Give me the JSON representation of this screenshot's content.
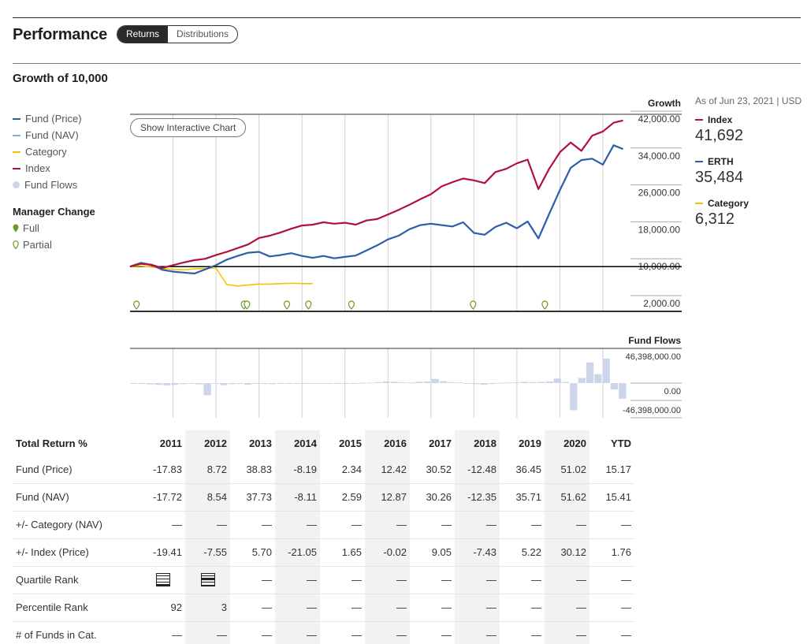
{
  "header": {
    "title": "Performance",
    "tabs": [
      {
        "label": "Returns",
        "active": true
      },
      {
        "label": "Distributions",
        "active": false
      }
    ]
  },
  "growth": {
    "title": "Growth of 10,000",
    "show_interactive_label": "Show Interactive Chart",
    "legend": [
      {
        "label": "Fund (Price)",
        "color": "#2e5ea8",
        "kind": "line"
      },
      {
        "label": "Fund (NAV)",
        "color": "#8fa9d6",
        "kind": "line"
      },
      {
        "label": "Category",
        "color": "#f2c300",
        "kind": "line"
      },
      {
        "label": "Index",
        "color": "#b0113d",
        "kind": "line"
      },
      {
        "label": "Fund Flows",
        "color": "#cdd6e8",
        "kind": "dot"
      }
    ],
    "manager_change": {
      "title": "Manager Change",
      "full_label": "Full",
      "partial_label": "Partial",
      "color": "#6e9a26"
    },
    "as_of": "As of Jun 23, 2021 | USD",
    "summary": [
      {
        "label": "Index",
        "value": "41,692",
        "color": "#b0113d"
      },
      {
        "label": "ERTH",
        "value": "35,484",
        "color": "#2e5ea8"
      },
      {
        "label": "Category",
        "value": "6,312",
        "color": "#f2c300"
      }
    ]
  },
  "chart_data": [
    {
      "type": "line",
      "title": "Growth",
      "ytick_labels": [
        "42,000.00",
        "34,000.00",
        "26,000.00",
        "18,000.00",
        "10,000.00",
        "2,000.00"
      ],
      "ylim": [
        2000,
        42000
      ],
      "x": [
        2010.0,
        2010.25,
        2010.5,
        2010.75,
        2011.0,
        2011.25,
        2011.5,
        2011.75,
        2012.0,
        2012.25,
        2012.5,
        2012.75,
        2013.0,
        2013.25,
        2013.5,
        2013.75,
        2014.0,
        2014.25,
        2014.5,
        2014.75,
        2015.0,
        2015.25,
        2015.5,
        2015.75,
        2016.0,
        2016.25,
        2016.5,
        2016.75,
        2017.0,
        2017.25,
        2017.5,
        2017.75,
        2018.0,
        2018.25,
        2018.5,
        2018.75,
        2019.0,
        2019.25,
        2019.5,
        2019.75,
        2020.0,
        2020.25,
        2020.5,
        2020.75,
        2021.0,
        2021.25,
        2021.47
      ],
      "series": [
        {
          "name": "Index",
          "color": "#b0113d",
          "values": [
            10000,
            10600,
            10400,
            9700,
            10300,
            10900,
            11400,
            11700,
            12500,
            13200,
            14000,
            14800,
            16200,
            16700,
            17400,
            18200,
            18900,
            19100,
            19600,
            19300,
            19500,
            19100,
            20000,
            20300,
            21300,
            22300,
            23400,
            24600,
            25700,
            27400,
            28300,
            29100,
            28700,
            28100,
            30500,
            31200,
            32400,
            33200,
            26800,
            31200,
            34800,
            36900,
            35100,
            38400,
            39300,
            41200,
            41692
          ]
        },
        {
          "name": "Fund (Price)",
          "color": "#2e5ea8",
          "values": [
            10000,
            10800,
            10400,
            9300,
            8900,
            8700,
            8500,
            9400,
            10300,
            11500,
            12300,
            13000,
            13200,
            12200,
            12500,
            12900,
            12300,
            11900,
            12300,
            11800,
            12100,
            12400,
            13500,
            14600,
            15900,
            16700,
            18100,
            19000,
            19300,
            19000,
            18700,
            19600,
            17300,
            16900,
            18600,
            19500,
            18300,
            19800,
            16100,
            21400,
            26600,
            31400,
            33100,
            33400,
            32100,
            36300,
            35484
          ]
        },
        {
          "name": "Category",
          "color": "#f2c300",
          "values": [
            10000,
            10100,
            9900,
            9600,
            9400,
            9300,
            9500,
            9600,
            9700,
            6100,
            5800,
            6000,
            6200,
            6200,
            6300,
            6400,
            6300,
            6312,
            null,
            null,
            null,
            null,
            null,
            null,
            null,
            null,
            null,
            null,
            null,
            null,
            null,
            null,
            null,
            null,
            null,
            null,
            null,
            null,
            null,
            null,
            null,
            null,
            null,
            null,
            null,
            null,
            null
          ]
        }
      ]
    },
    {
      "type": "bar",
      "title": "Fund Flows",
      "ytick_labels": [
        "46,398,000.00",
        "0.00",
        "-46,398,000.00"
      ],
      "ylim": [
        -46398000,
        46398000
      ],
      "values": [
        -400000,
        -1200000,
        -1800000,
        -2500000,
        -3200000,
        -2500000,
        -1500000,
        -900000,
        -1800000,
        -17000000,
        -1000000,
        -3000000,
        -1500000,
        -1200000,
        -2200000,
        -1000000,
        -800000,
        -1500000,
        -1000000,
        -700000,
        -700000,
        -500000,
        -900000,
        -500000,
        -1200000,
        -800000,
        -500000,
        -300000,
        500000,
        800000,
        1500000,
        2500000,
        2000000,
        1200000,
        800000,
        2000000,
        2500000,
        6500000,
        3000000,
        1500000,
        1000000,
        -800000,
        -1500000,
        -2200000,
        -1300000,
        500000,
        900000,
        1200000,
        2000000,
        1500000,
        1800000,
        2500000,
        7000000,
        1500000,
        -38000000,
        8000000,
        32000000,
        14000000,
        38000000,
        -9000000,
        -22000000
      ]
    }
  ],
  "table": {
    "header_label": "Total Return %",
    "years": [
      "2011",
      "2012",
      "2013",
      "2014",
      "2015",
      "2016",
      "2017",
      "2018",
      "2019",
      "2020",
      "YTD"
    ],
    "rows": [
      {
        "label": "Fund (Price)",
        "values": [
          "-17.83",
          "8.72",
          "38.83",
          "-8.19",
          "2.34",
          "12.42",
          "30.52",
          "-12.48",
          "36.45",
          "51.02",
          "15.17"
        ]
      },
      {
        "label": "Fund (NAV)",
        "values": [
          "-17.72",
          "8.54",
          "37.73",
          "-8.11",
          "2.59",
          "12.87",
          "30.26",
          "-12.35",
          "35.71",
          "51.62",
          "15.41"
        ]
      },
      {
        "label": "+/- Category (NAV)",
        "values": [
          "—",
          "—",
          "—",
          "—",
          "—",
          "—",
          "—",
          "—",
          "—",
          "—",
          "—"
        ]
      },
      {
        "label": "+/- Index (Price)",
        "values": [
          "-19.41",
          "-7.55",
          "5.70",
          "-21.05",
          "1.65",
          "-0.02",
          "9.05",
          "-7.43",
          "5.22",
          "30.12",
          "1.76"
        ]
      },
      {
        "label": "Quartile Rank",
        "values": [
          "Q4",
          "Q2",
          "—",
          "—",
          "—",
          "—",
          "—",
          "—",
          "—",
          "—",
          "—"
        ]
      },
      {
        "label": "Percentile Rank",
        "values": [
          "92",
          "3",
          "—",
          "—",
          "—",
          "—",
          "—",
          "—",
          "—",
          "—",
          "—"
        ]
      },
      {
        "label": "# of Funds in Cat.",
        "values": [
          "—",
          "—",
          "—",
          "—",
          "—",
          "—",
          "—",
          "—",
          "—",
          "—",
          "—"
        ]
      }
    ]
  }
}
